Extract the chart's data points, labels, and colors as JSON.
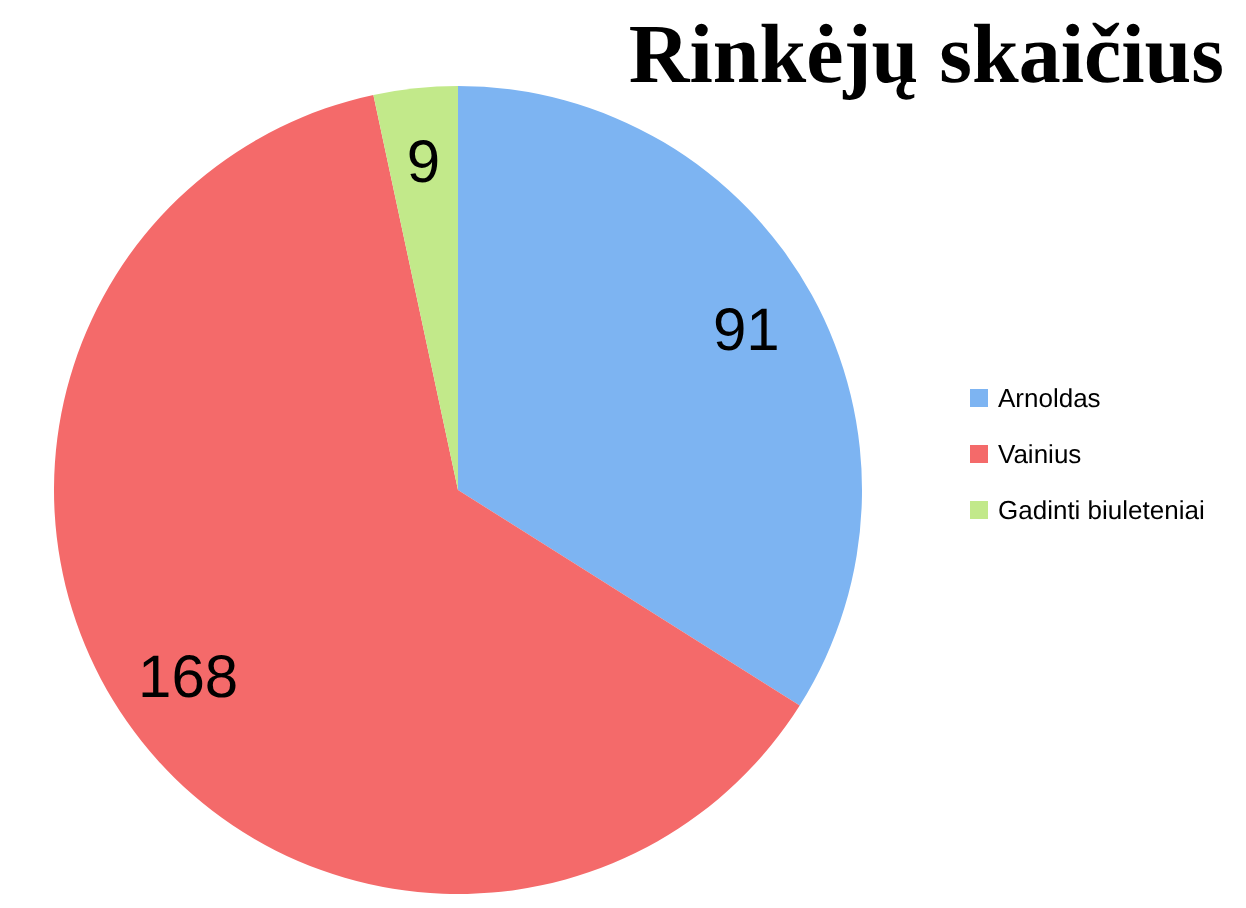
{
  "chart_data": {
    "type": "pie",
    "title": "Rinkėjų skaičius",
    "categories": [
      "Arnoldas",
      "Vainius",
      "Gadinti biuleteniai"
    ],
    "values": [
      91,
      168,
      9
    ],
    "colors": [
      "#7db4f2",
      "#f46a6a",
      "#c2e98a"
    ],
    "data_labels": true,
    "legend": "right"
  }
}
